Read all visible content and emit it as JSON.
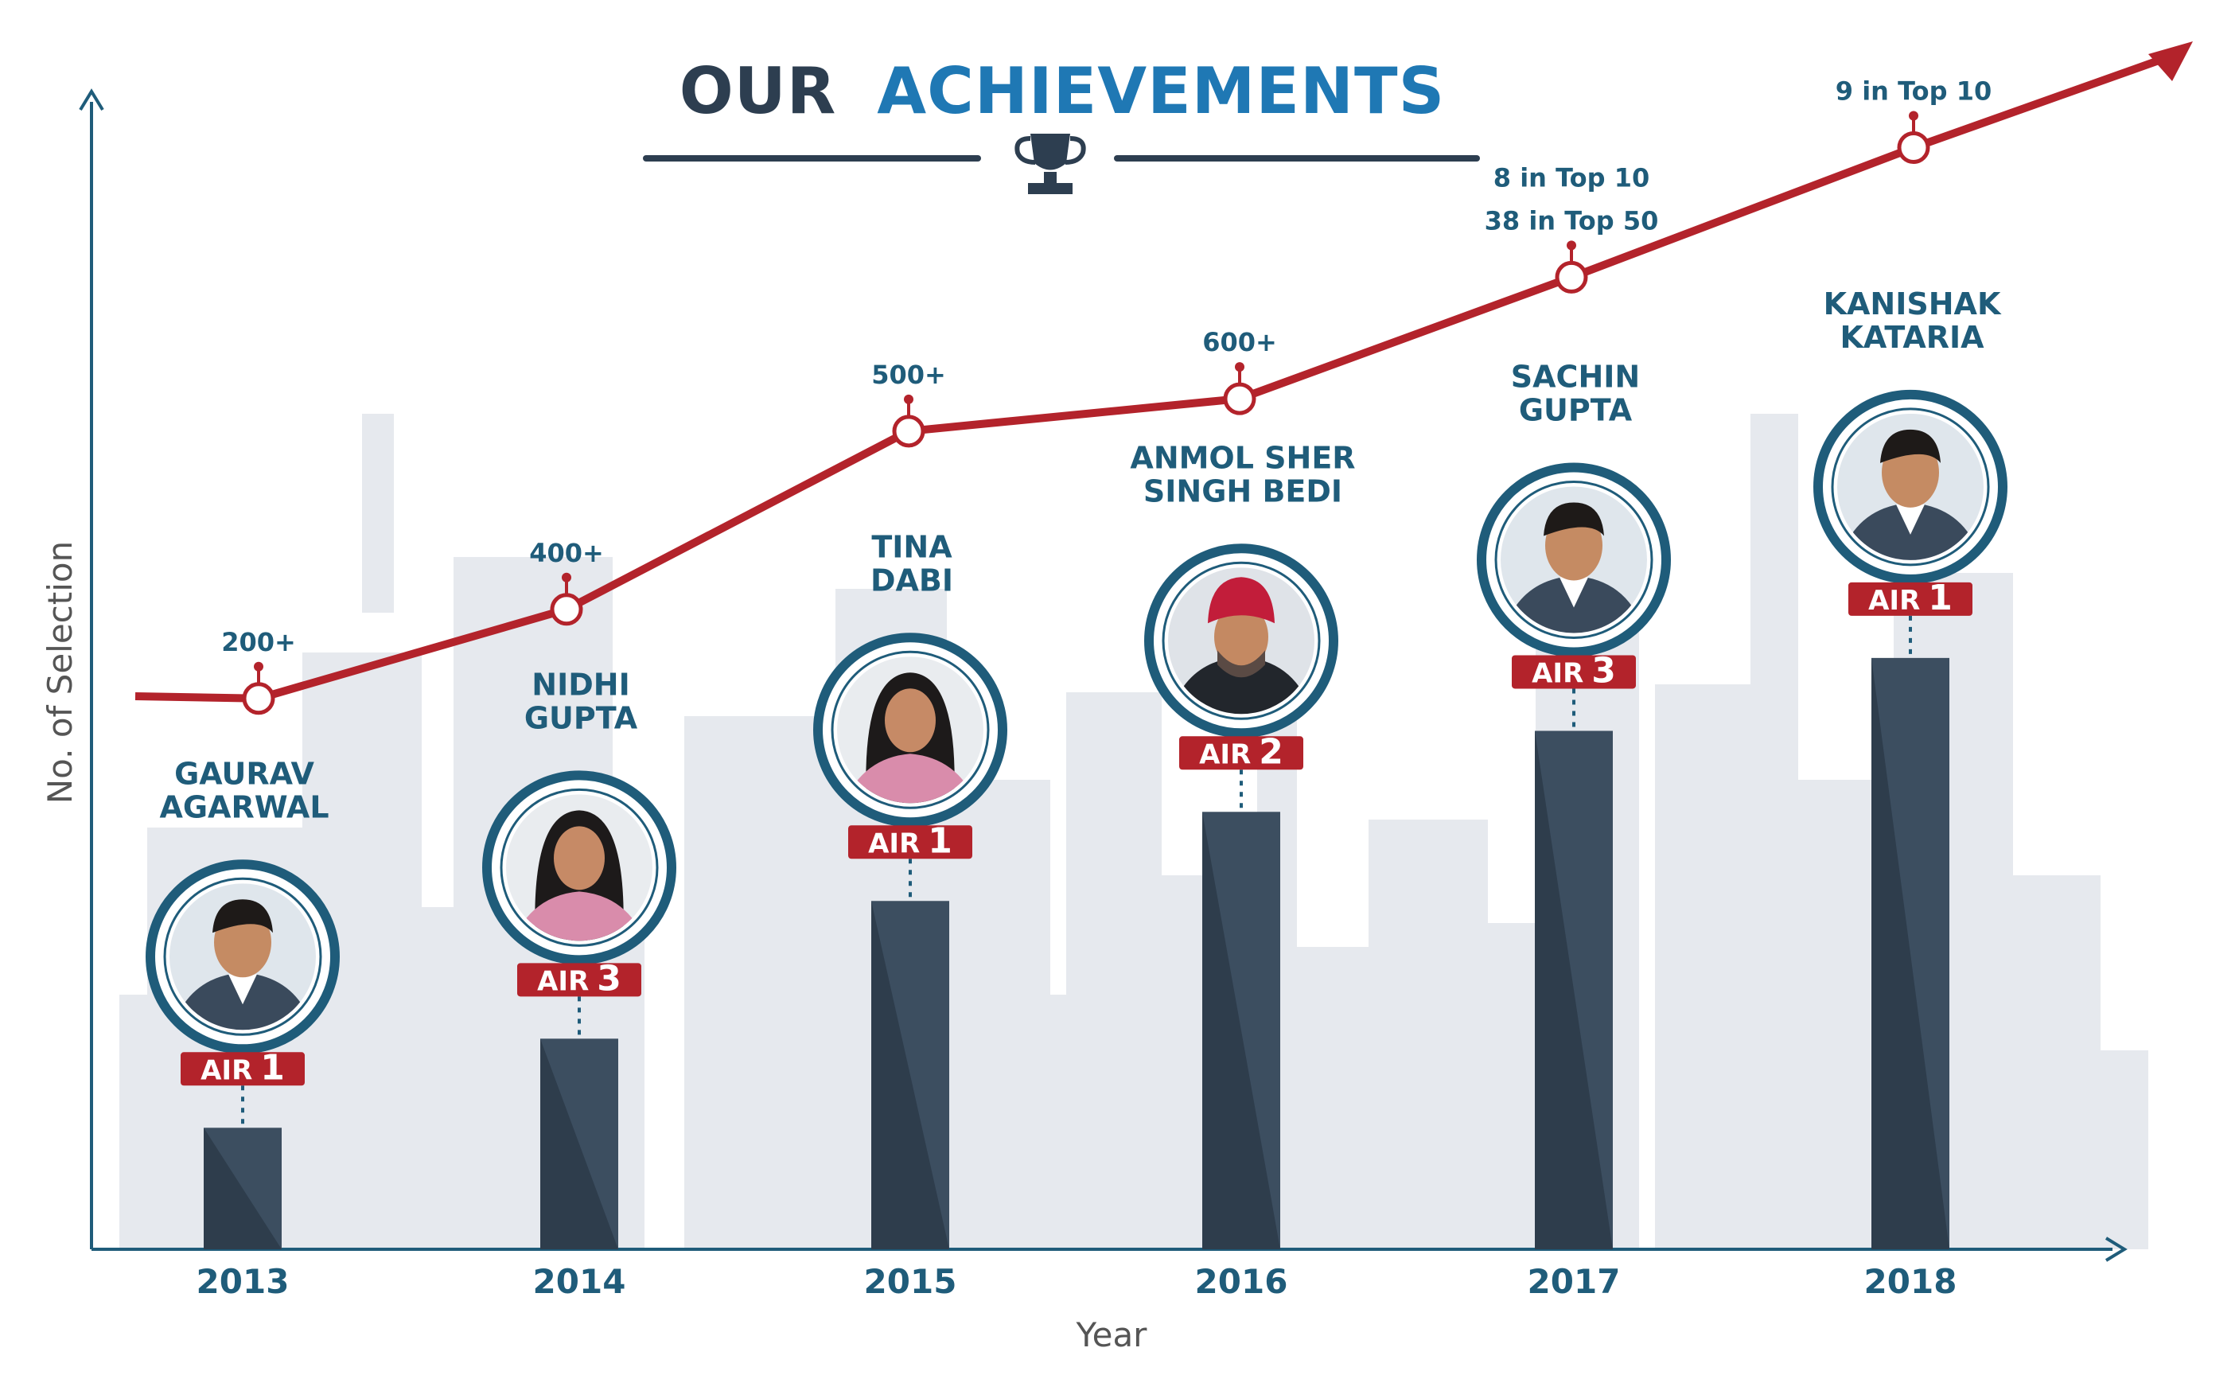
{
  "title": {
    "part1": "OUR",
    "part2": "ACHIEVEMENTS"
  },
  "colors": {
    "dark": "#2d3e50",
    "accent_blue": "#1f78b4",
    "line_red": "#b3232b",
    "bar": "#3c4e60",
    "bar_shade": "#2e3d4c",
    "axis": "#1f5c7a",
    "skyline": "#e6e9ee"
  },
  "chart_data": {
    "type": "bar",
    "xlabel": "Year",
    "ylabel": "No. of Selection",
    "categories": [
      "2013",
      "2014",
      "2015",
      "2016",
      "2017",
      "2018"
    ],
    "bar_values": [
      15,
      26,
      43,
      54,
      64,
      73
    ],
    "ylim": [
      0,
      140
    ],
    "trend": {
      "values": [
        68,
        79,
        101,
        105,
        120,
        136
      ],
      "labels": [
        [
          "200+"
        ],
        [
          "400+"
        ],
        [
          "500+"
        ],
        [
          "600+"
        ],
        [
          "8 in Top 10",
          "38 in Top 50"
        ],
        [
          "9 in Top 10"
        ]
      ]
    },
    "toppers": [
      {
        "name": [
          "GAURAV",
          "AGARWAL"
        ],
        "rank_prefix": "AIR",
        "rank": "1",
        "icon": "man-photo-icon"
      },
      {
        "name": [
          "NIDHI",
          "GUPTA"
        ],
        "rank_prefix": "AIR",
        "rank": "3",
        "icon": "woman-photo-icon"
      },
      {
        "name": [
          "TINA",
          "DABI"
        ],
        "rank_prefix": "AIR",
        "rank": "1",
        "icon": "woman-photo-icon"
      },
      {
        "name": [
          "ANMOL SHER",
          "SINGH BEDI"
        ],
        "rank_prefix": "AIR",
        "rank": "2",
        "icon": "man-turban-photo-icon"
      },
      {
        "name": [
          "SACHIN",
          "GUPTA"
        ],
        "rank_prefix": "AIR",
        "rank": "3",
        "icon": "man-photo-icon"
      },
      {
        "name": [
          "KANISHAK",
          "KATARIA"
        ],
        "rank_prefix": "AIR",
        "rank": "1",
        "icon": "man-photo-icon"
      }
    ],
    "grid": false
  }
}
